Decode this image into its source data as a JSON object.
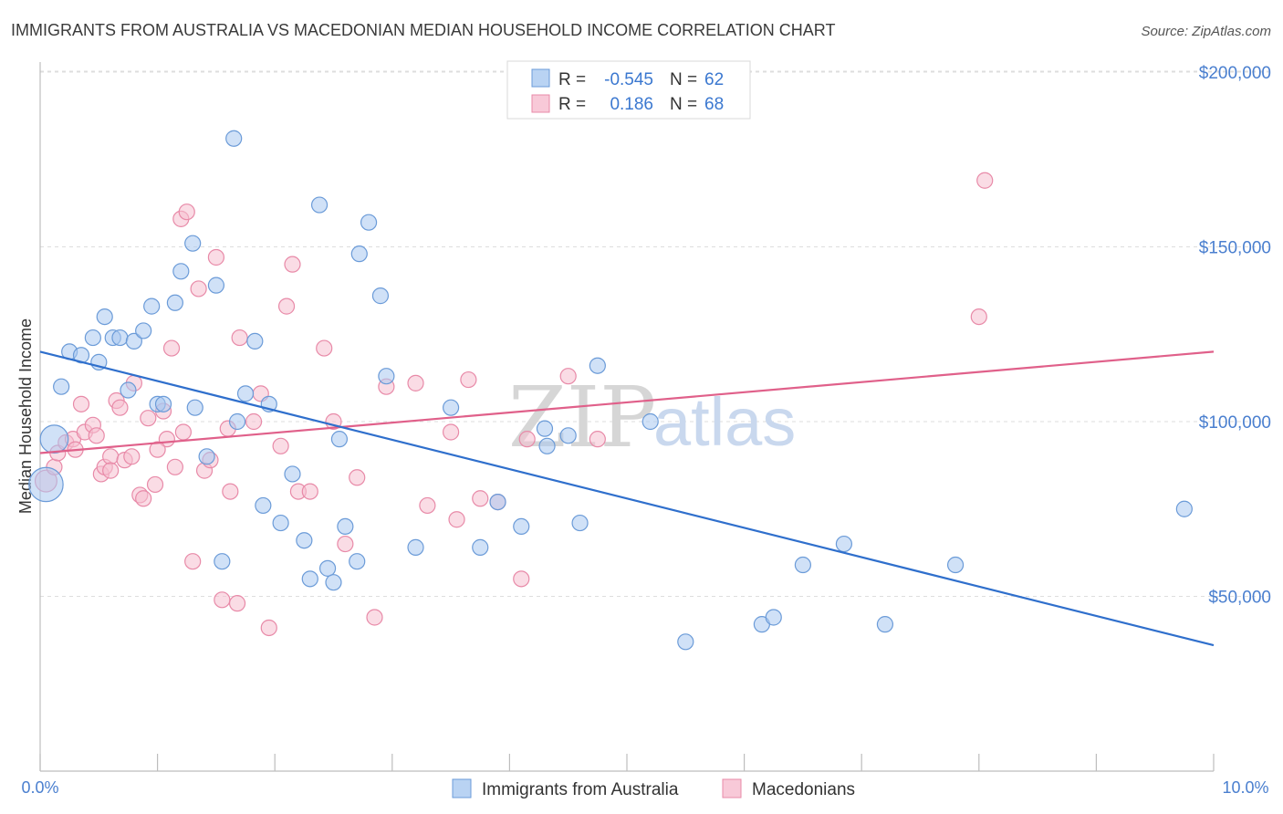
{
  "header": {
    "title": "IMMIGRANTS FROM AUSTRALIA VS MACEDONIAN MEDIAN HOUSEHOLD INCOME CORRELATION CHART",
    "source": "Source: ZipAtlas.com"
  },
  "watermark": {
    "zip": "ZIP",
    "atlas": "atlas"
  },
  "colors": {
    "blue_fill": "#a9c8f0",
    "blue_stroke": "#6b9bd8",
    "blue_line": "#2f6fcc",
    "pink_fill": "#f6bfd0",
    "pink_stroke": "#e88aa8",
    "pink_line": "#e0608a",
    "grid": "#dedede",
    "axis_text": "#4a7fcf"
  },
  "stats_box": {
    "rows": [
      {
        "r_label": "R =",
        "r_value": "-0.545",
        "n_label": "N =",
        "n_value": "62"
      },
      {
        "r_label": "R =",
        "r_value": "0.186",
        "n_label": "N =",
        "n_value": "68"
      }
    ]
  },
  "chart_data": {
    "type": "scatter",
    "title": "IMMIGRANTS FROM AUSTRALIA VS MACEDONIAN MEDIAN HOUSEHOLD INCOME CORRELATION CHART",
    "xlabel": "",
    "ylabel": "Median Household Income",
    "xlim": [
      0,
      10
    ],
    "ylim": [
      0,
      205000
    ],
    "x_tick_labels": [
      "0.0%",
      "10.0%"
    ],
    "y_ticks": [
      {
        "value": 50000,
        "label": "$50,000"
      },
      {
        "value": 100000,
        "label": "$100,000"
      },
      {
        "value": 150000,
        "label": "$150,000"
      },
      {
        "value": 200000,
        "label": "$200,000"
      }
    ],
    "grid": true,
    "legend_position": "bottom-center",
    "series": [
      {
        "name": "Immigrants from Australia",
        "color": "#a9c8f0",
        "trend": {
          "x": [
            0,
            10
          ],
          "y": [
            120000,
            36000
          ]
        },
        "points": [
          [
            0.05,
            82000,
            22
          ],
          [
            0.12,
            95000,
            18
          ],
          [
            0.18,
            110000,
            10
          ],
          [
            0.25,
            120000,
            10
          ],
          [
            0.35,
            119000,
            10
          ],
          [
            0.45,
            124000,
            10
          ],
          [
            0.5,
            117000,
            10
          ],
          [
            0.55,
            130000,
            10
          ],
          [
            0.62,
            124000,
            10
          ],
          [
            0.68,
            124000,
            10
          ],
          [
            0.75,
            109000,
            10
          ],
          [
            0.8,
            123000,
            10
          ],
          [
            0.88,
            126000,
            10
          ],
          [
            0.95,
            133000,
            10
          ],
          [
            1.0,
            105000,
            10
          ],
          [
            1.05,
            105000,
            10
          ],
          [
            1.15,
            134000,
            10
          ],
          [
            1.2,
            143000,
            10
          ],
          [
            1.3,
            151000,
            10
          ],
          [
            1.32,
            104000,
            10
          ],
          [
            1.42,
            90000,
            10
          ],
          [
            1.5,
            139000,
            10
          ],
          [
            1.55,
            60000,
            10
          ],
          [
            1.65,
            181000,
            10
          ],
          [
            1.68,
            100000,
            10
          ],
          [
            1.75,
            108000,
            10
          ],
          [
            1.83,
            123000,
            10
          ],
          [
            1.9,
            76000,
            10
          ],
          [
            1.95,
            105000,
            10
          ],
          [
            2.05,
            71000,
            10
          ],
          [
            2.15,
            85000,
            10
          ],
          [
            2.25,
            66000,
            10
          ],
          [
            2.3,
            55000,
            10
          ],
          [
            2.38,
            162000,
            10
          ],
          [
            2.45,
            58000,
            10
          ],
          [
            2.5,
            54000,
            10
          ],
          [
            2.55,
            95000,
            10
          ],
          [
            2.6,
            70000,
            10
          ],
          [
            2.7,
            60000,
            10
          ],
          [
            2.72,
            148000,
            10
          ],
          [
            2.8,
            157000,
            10
          ],
          [
            2.9,
            136000,
            10
          ],
          [
            2.95,
            113000,
            10
          ],
          [
            3.2,
            64000,
            10
          ],
          [
            3.5,
            104000,
            10
          ],
          [
            3.75,
            64000,
            10
          ],
          [
            3.9,
            77000,
            10
          ],
          [
            4.1,
            70000,
            10
          ],
          [
            4.3,
            98000,
            10
          ],
          [
            4.32,
            93000,
            10
          ],
          [
            4.5,
            96000,
            10
          ],
          [
            4.6,
            71000,
            10
          ],
          [
            4.75,
            116000,
            10
          ],
          [
            5.2,
            100000,
            10
          ],
          [
            5.5,
            37000,
            10
          ],
          [
            6.15,
            42000,
            10
          ],
          [
            6.25,
            44000,
            10
          ],
          [
            6.5,
            59000,
            10
          ],
          [
            6.85,
            65000,
            10
          ],
          [
            7.2,
            42000,
            10
          ],
          [
            7.8,
            59000,
            10
          ],
          [
            9.75,
            75000,
            10
          ]
        ]
      },
      {
        "name": "Macedonians",
        "color": "#f6bfd0",
        "trend": {
          "x": [
            0,
            10
          ],
          "y": [
            91000,
            120000
          ]
        },
        "points": [
          [
            0.05,
            83000,
            14
          ],
          [
            0.12,
            87000,
            10
          ],
          [
            0.15,
            91000,
            10
          ],
          [
            0.22,
            94000,
            10
          ],
          [
            0.28,
            95000,
            10
          ],
          [
            0.3,
            92000,
            10
          ],
          [
            0.35,
            105000,
            10
          ],
          [
            0.38,
            97000,
            10
          ],
          [
            0.45,
            99000,
            10
          ],
          [
            0.48,
            96000,
            10
          ],
          [
            0.52,
            85000,
            10
          ],
          [
            0.55,
            87000,
            10
          ],
          [
            0.6,
            90000,
            10
          ],
          [
            0.65,
            106000,
            10
          ],
          [
            0.68,
            104000,
            10
          ],
          [
            0.72,
            89000,
            10
          ],
          [
            0.78,
            90000,
            10
          ],
          [
            0.8,
            111000,
            10
          ],
          [
            0.85,
            79000,
            10
          ],
          [
            0.88,
            78000,
            10
          ],
          [
            0.92,
            101000,
            10
          ],
          [
            0.98,
            82000,
            10
          ],
          [
            1.05,
            103000,
            10
          ],
          [
            1.08,
            95000,
            10
          ],
          [
            1.12,
            121000,
            10
          ],
          [
            1.15,
            87000,
            10
          ],
          [
            1.2,
            158000,
            10
          ],
          [
            1.22,
            97000,
            10
          ],
          [
            1.25,
            160000,
            10
          ],
          [
            1.3,
            60000,
            10
          ],
          [
            1.35,
            138000,
            10
          ],
          [
            1.4,
            86000,
            10
          ],
          [
            1.45,
            89000,
            10
          ],
          [
            1.5,
            147000,
            10
          ],
          [
            1.55,
            49000,
            10
          ],
          [
            1.6,
            98000,
            10
          ],
          [
            1.62,
            80000,
            10
          ],
          [
            1.68,
            48000,
            10
          ],
          [
            1.7,
            124000,
            10
          ],
          [
            1.82,
            100000,
            10
          ],
          [
            1.88,
            108000,
            10
          ],
          [
            1.95,
            41000,
            10
          ],
          [
            2.05,
            93000,
            10
          ],
          [
            2.1,
            133000,
            10
          ],
          [
            2.15,
            145000,
            10
          ],
          [
            2.2,
            80000,
            10
          ],
          [
            2.42,
            121000,
            10
          ],
          [
            2.5,
            100000,
            10
          ],
          [
            2.6,
            65000,
            10
          ],
          [
            2.7,
            84000,
            10
          ],
          [
            2.85,
            44000,
            10
          ],
          [
            2.95,
            110000,
            10
          ],
          [
            3.2,
            111000,
            10
          ],
          [
            3.3,
            76000,
            10
          ],
          [
            3.5,
            97000,
            10
          ],
          [
            3.55,
            72000,
            10
          ],
          [
            3.65,
            112000,
            10
          ],
          [
            3.75,
            78000,
            10
          ],
          [
            3.9,
            77000,
            10
          ],
          [
            4.1,
            55000,
            10
          ],
          [
            4.15,
            95000,
            10
          ],
          [
            4.5,
            113000,
            10
          ],
          [
            4.75,
            95000,
            10
          ],
          [
            8.0,
            130000,
            10
          ],
          [
            8.05,
            169000,
            10
          ],
          [
            2.3,
            80000,
            10
          ],
          [
            1.0,
            92000,
            10
          ],
          [
            0.6,
            86000,
            10
          ]
        ]
      }
    ]
  }
}
